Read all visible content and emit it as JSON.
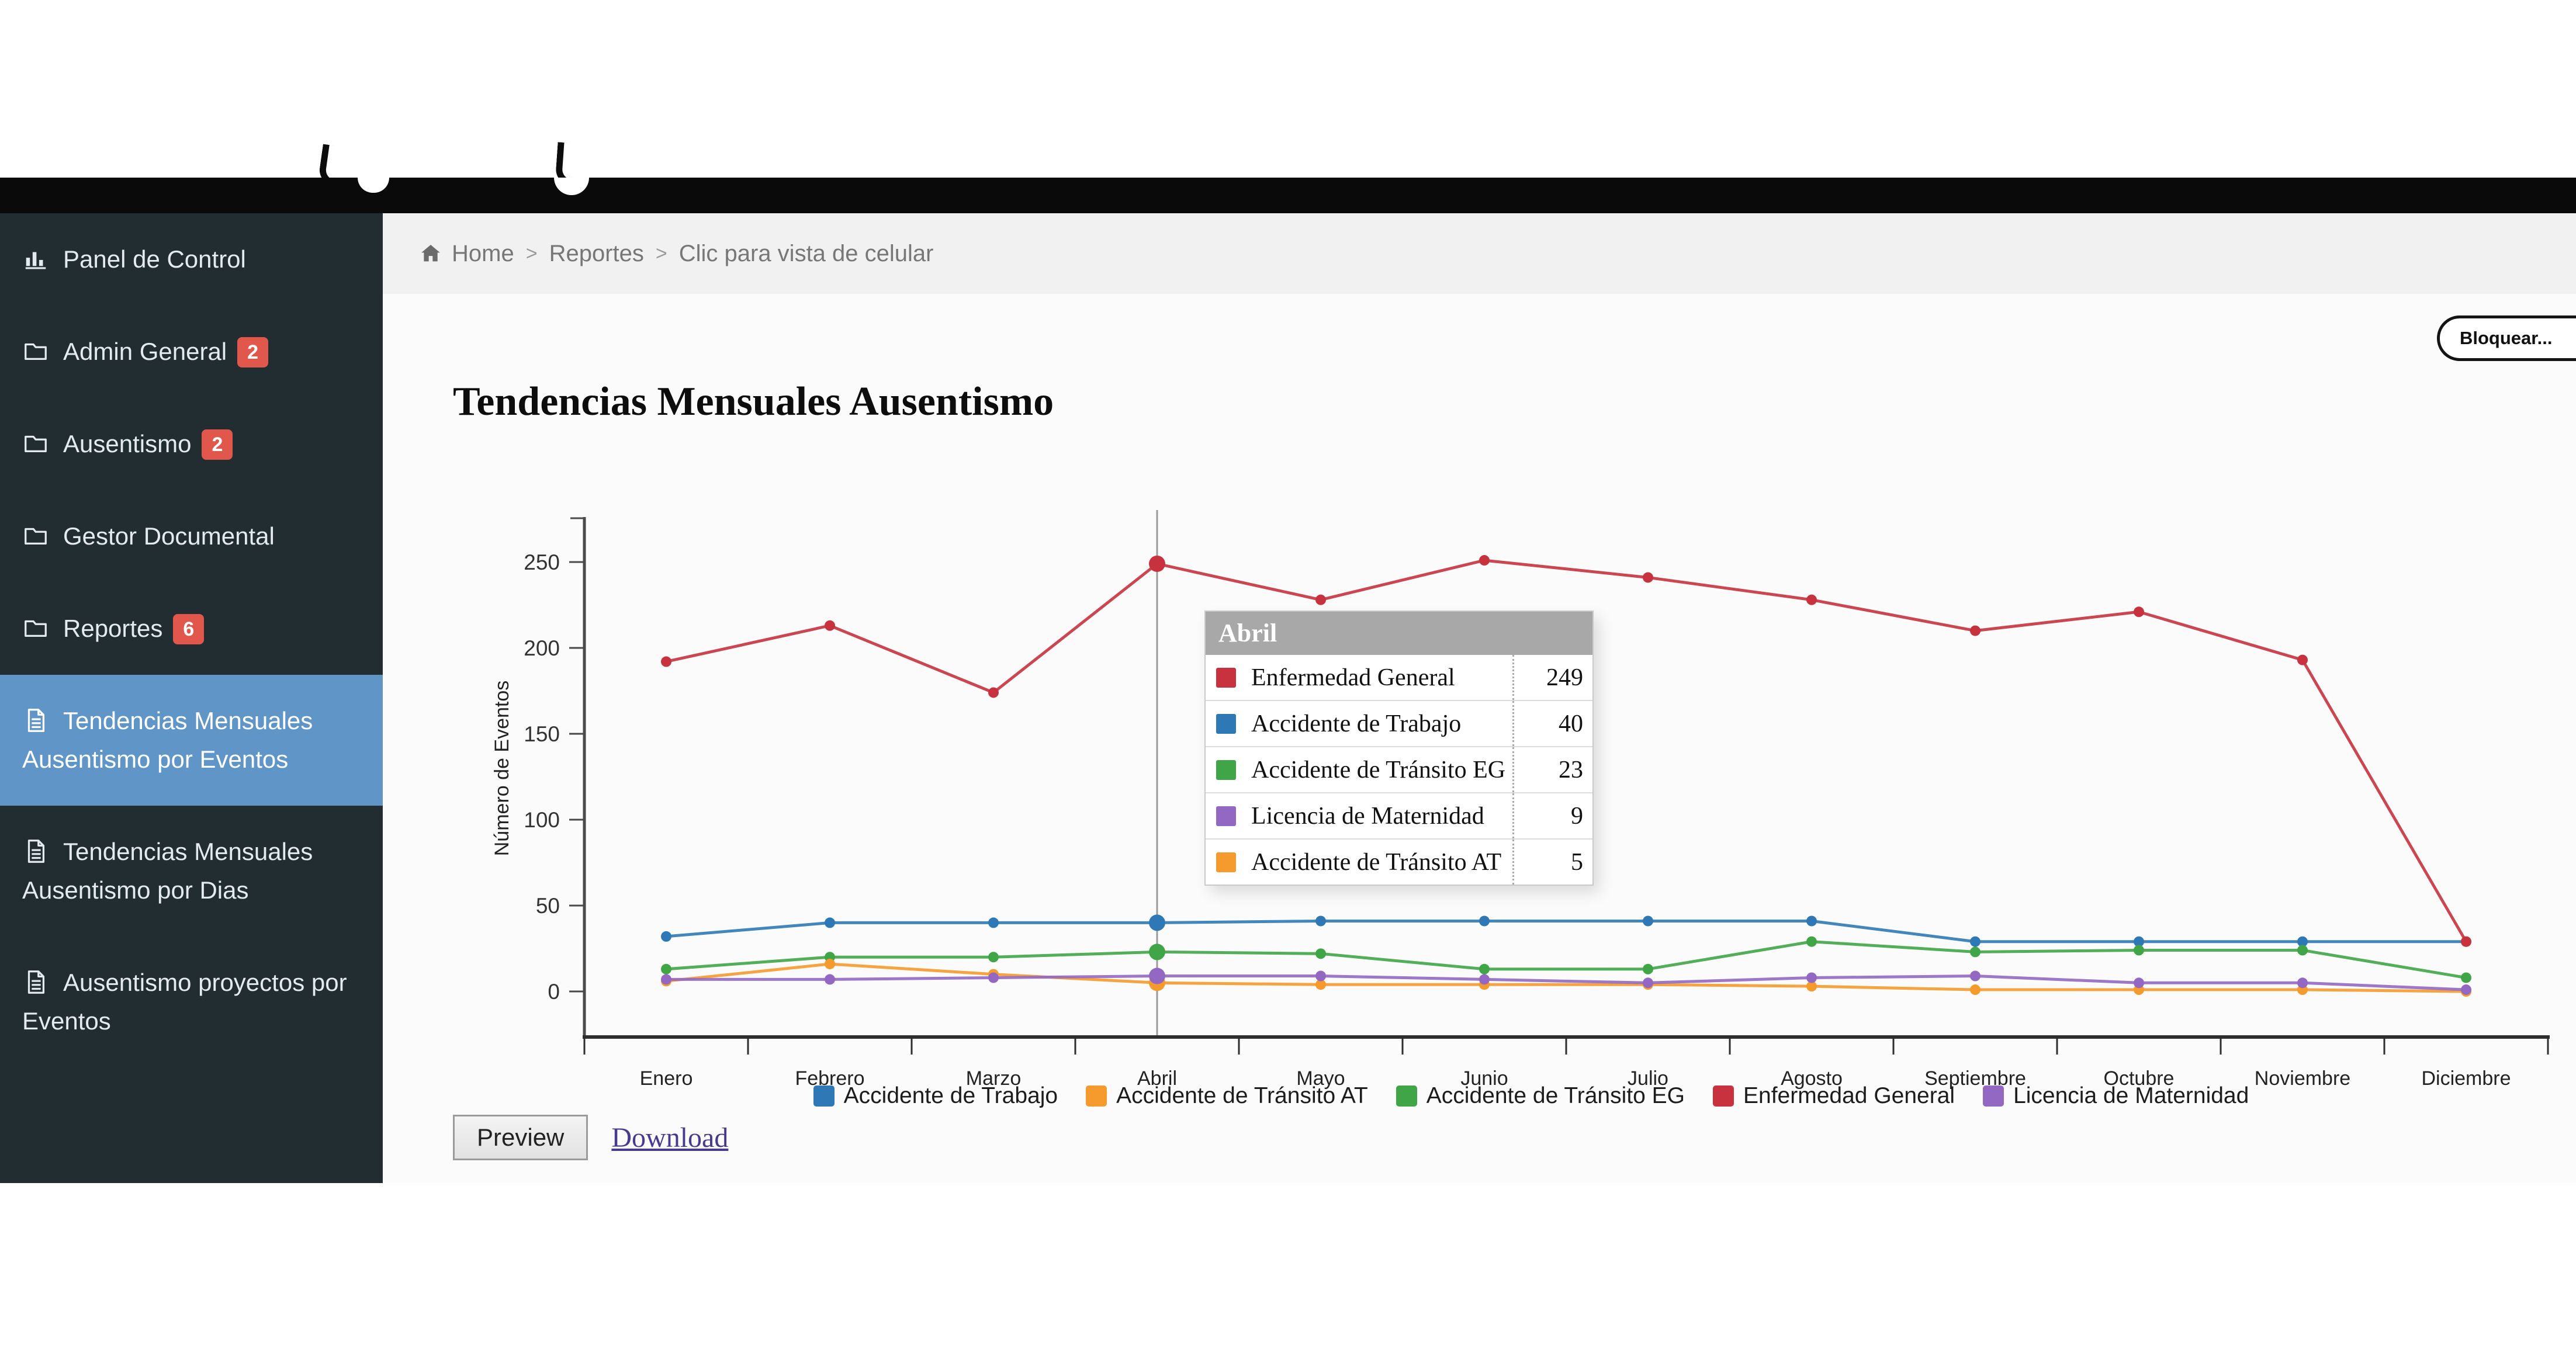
{
  "page": {
    "title": "Tendencias Mensuales Ausentismo"
  },
  "actions": {
    "bloquear": "Bloquear...",
    "preview": "Preview",
    "download": "Download"
  },
  "sidebar": {
    "background": "#222d32",
    "active_background": "#6095c8",
    "badge_color": "#e2574c",
    "items": [
      {
        "label": "Panel de Control",
        "icon": "bar-chart-icon",
        "badge": "",
        "active": false
      },
      {
        "label": "Admin General",
        "icon": "folder-icon",
        "badge": "2",
        "active": false
      },
      {
        "label": "Ausentismo",
        "icon": "folder-icon",
        "badge": "2",
        "active": false
      },
      {
        "label": "Gestor Documental",
        "icon": "folder-icon",
        "badge": "",
        "active": false
      },
      {
        "label": "Reportes",
        "icon": "folder-icon",
        "badge": "6",
        "active": false
      },
      {
        "label": "Tendencias Mensuales Ausentismo por Eventos",
        "icon": "file-icon",
        "badge": "",
        "active": true
      },
      {
        "label": "Tendencias Mensuales Ausentismo por Dias",
        "icon": "file-icon",
        "badge": "",
        "active": false
      },
      {
        "label": "Ausentismo proyectos por Eventos",
        "icon": "file-icon",
        "badge": "",
        "active": false
      }
    ]
  },
  "breadcrumb": {
    "separator": ">",
    "items": [
      "Home",
      "Reportes",
      "Clic para vista de celular"
    ]
  },
  "chart_data": {
    "type": "line",
    "title": "Tendencias Mensuales Ausentismo",
    "xlabel": "",
    "ylabel": "Número de Eventos",
    "ylim": [
      0,
      250
    ],
    "yticks": [
      0,
      50,
      100,
      150,
      200,
      250
    ],
    "grid": false,
    "legend_position": "bottom",
    "categories": [
      "Enero",
      "Febrero",
      "Marzo",
      "Abril",
      "Mayo",
      "Junio",
      "Julio",
      "Agosto",
      "Septiembre",
      "Octubre",
      "Noviembre",
      "Diciembre"
    ],
    "series": [
      {
        "name": "Accidente de Trabajo",
        "color": "#2e79b5",
        "values": [
          32,
          40,
          40,
          40,
          41,
          41,
          41,
          41,
          29,
          29,
          29,
          29
        ]
      },
      {
        "name": "Accidente de Tránsito AT",
        "color": "#f59a2c",
        "values": [
          6,
          16,
          10,
          5,
          4,
          4,
          4,
          3,
          1,
          1,
          1,
          0
        ]
      },
      {
        "name": "Accidente de Tránsito EG",
        "color": "#3fa546",
        "values": [
          13,
          20,
          20,
          23,
          22,
          13,
          13,
          29,
          23,
          24,
          24,
          8
        ]
      },
      {
        "name": "Enfermedad General",
        "color": "#c7323e",
        "values": [
          192,
          213,
          174,
          249,
          228,
          251,
          241,
          228,
          210,
          221,
          193,
          29
        ]
      },
      {
        "name": "Licencia de Maternidad",
        "color": "#9268c2",
        "values": [
          7,
          7,
          8,
          9,
          9,
          7,
          5,
          8,
          9,
          5,
          5,
          1
        ]
      }
    ],
    "hover_category": "Abril",
    "hover_index": 3
  },
  "tooltip": {
    "title": "Abril",
    "rows": [
      {
        "label": "Enfermedad General",
        "value": "249",
        "color": "#c7323e"
      },
      {
        "label": "Accidente de Trabajo",
        "value": "40",
        "color": "#2e79b5"
      },
      {
        "label": "Accidente de Tránsito EG",
        "value": "23",
        "color": "#3fa546"
      },
      {
        "label": "Licencia de Maternidad",
        "value": "9",
        "color": "#9268c2"
      },
      {
        "label": "Accidente de Tránsito AT",
        "value": "5",
        "color": "#f59a2c"
      }
    ]
  }
}
